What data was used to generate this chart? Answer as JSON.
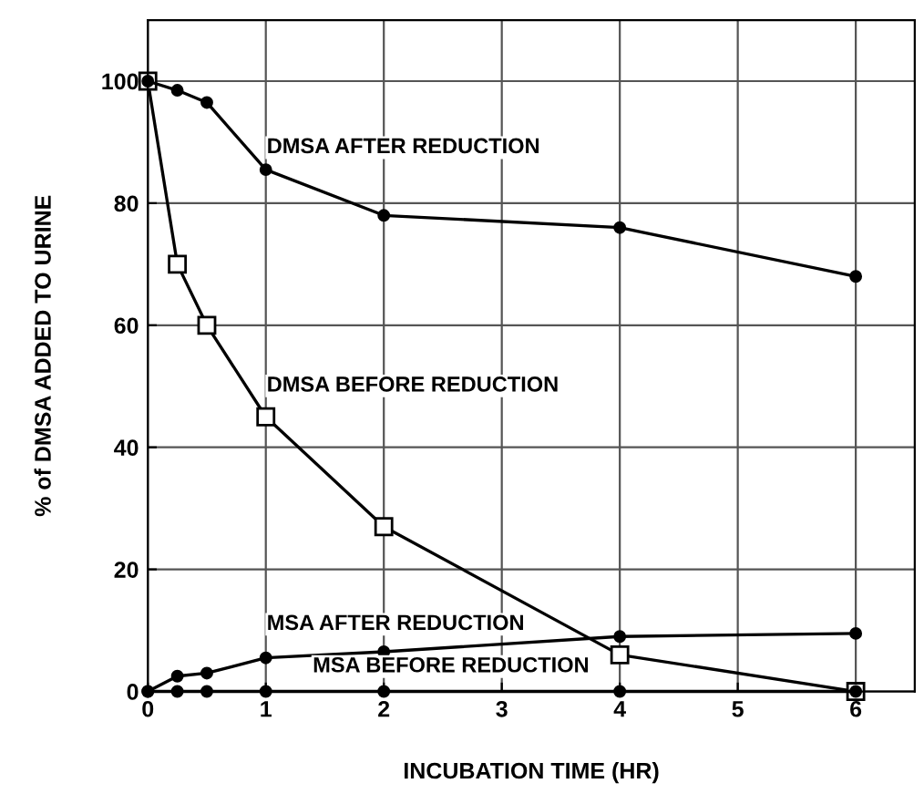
{
  "chart_data": {
    "type": "line",
    "xlabel": "INCUBATION TIME (HR)",
    "ylabel": "% of DMSA ADDED TO URINE",
    "xlim": [
      0,
      6.5
    ],
    "ylim": [
      0,
      110
    ],
    "xticks": [
      0,
      1,
      2,
      3,
      4,
      5,
      6
    ],
    "yticks": [
      0,
      20,
      40,
      60,
      80,
      100
    ],
    "grid": true,
    "legend": false,
    "series": [
      {
        "color": "#000000",
        "marker": "circle",
        "x": [
          0,
          0.25,
          0.5,
          1,
          2,
          4,
          6
        ],
        "values": [
          100,
          98.5,
          96.5,
          85.5,
          78,
          76,
          68
        ]
      },
      {
        "color": "#000000",
        "marker": "square",
        "x": [
          0,
          0.25,
          0.5,
          1,
          2,
          4,
          6
        ],
        "values": [
          100,
          70,
          60,
          45,
          27,
          6,
          0
        ]
      },
      {
        "color": "#000000",
        "marker": "circle",
        "x": [
          0,
          0.25,
          0.5,
          1,
          2,
          4,
          6
        ],
        "values": [
          0,
          2.5,
          3,
          5.5,
          6.5,
          9,
          9.5
        ]
      },
      {
        "color": "#000000",
        "marker": "circle",
        "x": [
          0,
          0.25,
          0.5,
          1,
          2,
          4,
          6
        ],
        "values": [
          0,
          0,
          0,
          0,
          0,
          0,
          0
        ]
      }
    ],
    "annotations": [
      "DMSA AFTER REDUCTION",
      "DMSA BEFORE REDUCTION",
      "MSA AFTER REDUCTION",
      "MSA BEFORE REDUCTION"
    ]
  }
}
